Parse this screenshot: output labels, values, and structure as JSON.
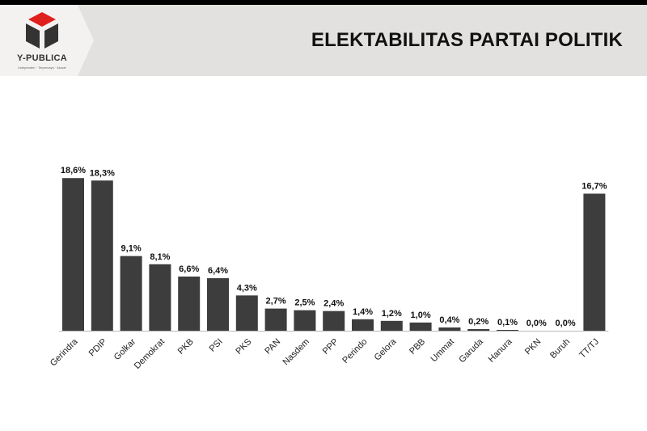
{
  "header": {
    "logo_text": "Y-PUBLICA",
    "logo_tagline": "Independen · Terpercaya · Akurat",
    "title": "ELEKTABILITAS PARTAI POLITIK"
  },
  "colors": {
    "bar": "#3d3d3d",
    "header_bg": "#e2e1df",
    "logo_red": "#e0201c",
    "logo_dark": "#333333"
  },
  "chart_data": {
    "type": "bar",
    "title": "ELEKTABILITAS PARTAI POLITIK",
    "xlabel": "",
    "ylabel": "",
    "categories": [
      "Gerindra",
      "PDIP",
      "Golkar",
      "Demokrat",
      "PKB",
      "PSI",
      "PKS",
      "PAN",
      "Nasdem",
      "PPP",
      "Perindo",
      "Gelora",
      "PBB",
      "Ummat",
      "Garuda",
      "Hanura",
      "PKN",
      "Buruh",
      "TT/TJ"
    ],
    "values": [
      18.6,
      18.3,
      9.1,
      8.1,
      6.6,
      6.4,
      4.3,
      2.7,
      2.5,
      2.4,
      1.4,
      1.2,
      1.0,
      0.4,
      0.2,
      0.1,
      0.0,
      0.0,
      16.7
    ],
    "labels": [
      "18,6%",
      "18,3%",
      "9,1%",
      "8,1%",
      "6,6%",
      "6,4%",
      "4,3%",
      "2,7%",
      "2,5%",
      "2,4%",
      "1,4%",
      "1,2%",
      "1,0%",
      "0,4%",
      "0,2%",
      "0,1%",
      "0,0%",
      "0,0%",
      "16,7%"
    ],
    "ylim": [
      0,
      20
    ],
    "grid": false,
    "legend": "none"
  }
}
